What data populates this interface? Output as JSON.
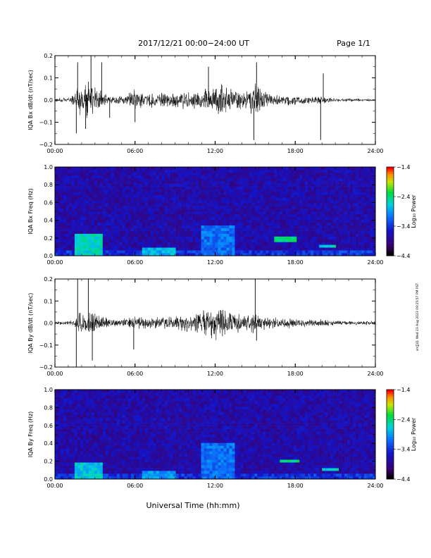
{
  "header": {
    "title": "2017/12/21  00:00−24:00 UT",
    "page": "Page 1/1"
  },
  "x_label": "Universal Time (hh:mm)",
  "side_note": "sm∑41 Wed 23 Aug 2023 09:25:57 PM PST",
  "chart_data": [
    {
      "type": "line",
      "id": "bx",
      "ylabel": "IQA Bx dB/dt (nT/sec)",
      "xlim": [
        "00:00",
        "24:00"
      ],
      "ylim": [
        -0.2,
        0.2
      ],
      "x_ticks": [
        "00:00",
        "06:00",
        "12:00",
        "18:00",
        "24:00"
      ],
      "y_ticks": [
        "0.2",
        "0.1",
        "0.0",
        "−0.1",
        "−0.2"
      ],
      "color": "#000000",
      "envelope": {
        "x_hours": [
          0,
          1,
          1.5,
          1.8,
          2.2,
          2.5,
          2.8,
          3.3,
          4,
          5,
          6,
          7,
          8,
          9,
          10,
          11,
          11.5,
          12,
          12.5,
          13,
          14,
          14.5,
          15,
          15.5,
          16,
          17,
          18,
          19,
          19.8,
          20.5,
          21,
          22,
          23,
          24
        ],
        "amplitude": [
          0.01,
          0.012,
          0.03,
          0.09,
          0.06,
          0.1,
          0.09,
          0.05,
          0.025,
          0.02,
          0.05,
          0.035,
          0.035,
          0.04,
          0.04,
          0.045,
          0.06,
          0.07,
          0.08,
          0.06,
          0.045,
          0.05,
          0.09,
          0.05,
          0.03,
          0.025,
          0.025,
          0.02,
          0.02,
          0.015,
          0.01,
          0.008,
          0.007,
          0.007
        ]
      },
      "spikes": [
        {
          "x": 1.6,
          "y": -0.15
        },
        {
          "x": 1.7,
          "y": 0.17
        },
        {
          "x": 2.3,
          "y": -0.13
        },
        {
          "x": 2.7,
          "y": 0.2
        },
        {
          "x": 3.5,
          "y": 0.17
        },
        {
          "x": 4.1,
          "y": -0.08
        },
        {
          "x": 6.0,
          "y": -0.1
        },
        {
          "x": 11.5,
          "y": 0.15
        },
        {
          "x": 14.9,
          "y": -0.18
        },
        {
          "x": 15.1,
          "y": 0.17
        },
        {
          "x": 19.9,
          "y": -0.18
        },
        {
          "x": 20.1,
          "y": 0.12
        }
      ]
    },
    {
      "type": "heatmap",
      "id": "bx-spec",
      "ylabel": "IQA Bx Freq (Hz)",
      "xlim": [
        "00:00",
        "24:00"
      ],
      "ylim": [
        0.0,
        1.0
      ],
      "x_ticks": [
        "00:00",
        "06:00",
        "12:00",
        "18:00",
        "24:00"
      ],
      "y_ticks": [
        "1.0",
        "0.8",
        "0.6",
        "0.4",
        "0.2",
        "0.0"
      ],
      "colorbar": {
        "label": "Log₁₀ Power",
        "range": [
          -4.4,
          -1.4
        ],
        "ticks": [
          "−1.4",
          "−2.4",
          "−3.4",
          "−4.4"
        ]
      },
      "features": [
        {
          "x": [
            1.5,
            3.6
          ],
          "f": [
            0.0,
            0.25
          ],
          "level": -2.6
        },
        {
          "x": [
            6.5,
            9.0
          ],
          "f": [
            0.0,
            0.1
          ],
          "level": -2.8
        },
        {
          "x": [
            11.0,
            13.5
          ],
          "f": [
            0.0,
            0.35
          ],
          "level": -3.1
        },
        {
          "x": [
            16.5,
            18.0
          ],
          "f": [
            0.17,
            0.21
          ],
          "level": -2.4
        },
        {
          "x": [
            19.8,
            21.0
          ],
          "f": [
            0.1,
            0.14
          ],
          "level": -2.6
        }
      ]
    },
    {
      "type": "line",
      "id": "by",
      "ylabel": "IQA By dB/dt (nT/sec)",
      "xlim": [
        "00:00",
        "24:00"
      ],
      "ylim": [
        -0.2,
        0.2
      ],
      "x_ticks": [
        "00:00",
        "06:00",
        "12:00",
        "18:00",
        "24:00"
      ],
      "y_ticks": [
        "0.2",
        "0.1",
        "0.0",
        "−0.1",
        "−0.2"
      ],
      "color": "#000000",
      "envelope": {
        "x_hours": [
          0,
          1,
          1.5,
          1.8,
          2.2,
          2.5,
          2.8,
          3.3,
          4,
          5,
          6,
          7,
          8,
          9,
          10,
          11,
          11.5,
          12,
          12.5,
          13,
          14,
          14.5,
          15,
          15.5,
          16,
          17,
          18,
          19,
          19.8,
          20.5,
          21,
          22,
          23,
          24
        ],
        "amplitude": [
          0.008,
          0.01,
          0.02,
          0.06,
          0.05,
          0.07,
          0.06,
          0.04,
          0.025,
          0.02,
          0.035,
          0.025,
          0.03,
          0.035,
          0.045,
          0.06,
          0.075,
          0.08,
          0.08,
          0.06,
          0.045,
          0.04,
          0.05,
          0.04,
          0.03,
          0.025,
          0.025,
          0.02,
          0.018,
          0.015,
          0.012,
          0.01,
          0.01,
          0.01
        ]
      },
      "spikes": [
        {
          "x": 1.6,
          "y": -0.22
        },
        {
          "x": 1.7,
          "y": 0.2
        },
        {
          "x": 2.5,
          "y": 0.2
        },
        {
          "x": 2.8,
          "y": -0.17
        },
        {
          "x": 5.9,
          "y": -0.12
        },
        {
          "x": 15.0,
          "y": 0.2
        },
        {
          "x": 15.1,
          "y": -0.08
        }
      ]
    },
    {
      "type": "heatmap",
      "id": "by-spec",
      "ylabel": "IQA By Freq (Hz)",
      "xlim": [
        "00:00",
        "24:00"
      ],
      "ylim": [
        0.0,
        1.0
      ],
      "x_ticks": [
        "00:00",
        "06:00",
        "12:00",
        "18:00",
        "24:00"
      ],
      "y_ticks": [
        "1.0",
        "0.8",
        "0.6",
        "0.4",
        "0.2",
        "0.0"
      ],
      "colorbar": {
        "label": "Log₁₀ Power",
        "range": [
          -4.4,
          -1.4
        ],
        "ticks": [
          "−1.4",
          "−2.4",
          "−3.4",
          "−4.4"
        ]
      },
      "features": [
        {
          "x": [
            1.5,
            3.6
          ],
          "f": [
            0.0,
            0.2
          ],
          "level": -2.7
        },
        {
          "x": [
            6.5,
            9.0
          ],
          "f": [
            0.0,
            0.08
          ],
          "level": -2.9
        },
        {
          "x": [
            11.0,
            13.5
          ],
          "f": [
            0.0,
            0.4
          ],
          "level": -3.1
        },
        {
          "x": [
            16.8,
            18.3
          ],
          "f": [
            0.18,
            0.22
          ],
          "level": -2.4
        },
        {
          "x": [
            20.0,
            21.2
          ],
          "f": [
            0.1,
            0.14
          ],
          "level": -2.6
        }
      ]
    }
  ]
}
